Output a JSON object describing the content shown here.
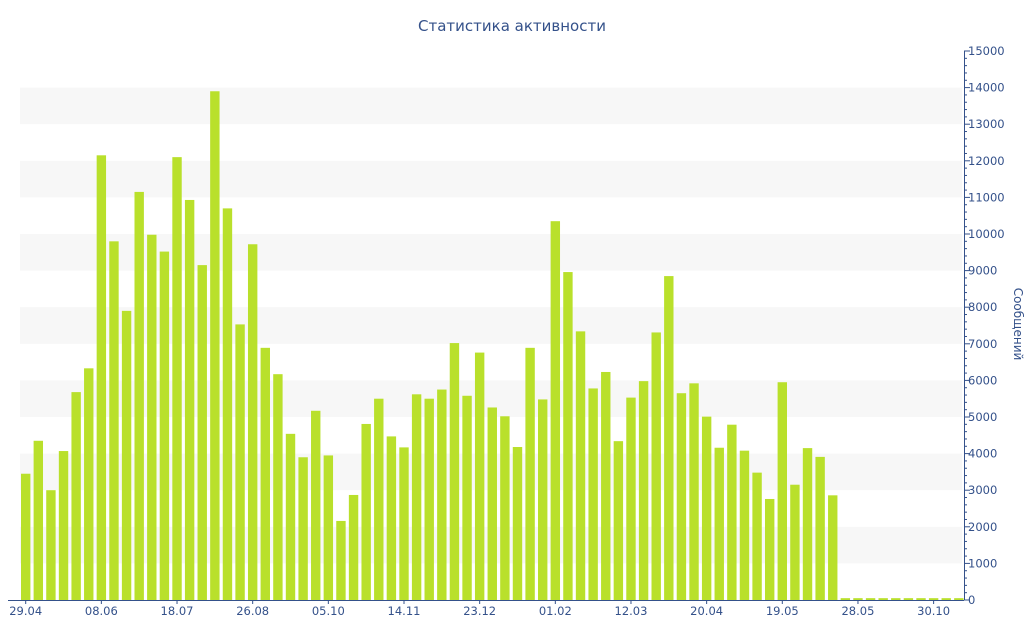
{
  "chart_data": {
    "type": "bar",
    "title": "Статистика активности",
    "xlabel": "",
    "ylabel": "Сообщений",
    "y_axis_side": "right",
    "ylim": [
      0,
      15000
    ],
    "y_ticks": [
      0,
      1000,
      2000,
      3000,
      4000,
      5000,
      6000,
      7000,
      8000,
      9000,
      10000,
      11000,
      12000,
      13000,
      14000,
      15000
    ],
    "x_tick_labels": [
      "29.04",
      "08.06",
      "18.07",
      "26.08",
      "05.10",
      "14.11",
      "23.12",
      "01.02",
      "12.03",
      "20.04",
      "19.05",
      "28.05",
      "30.10"
    ],
    "x_tick_bar_index": [
      0,
      6,
      12,
      18,
      24,
      30,
      36,
      42,
      48,
      54,
      60,
      66,
      72
    ],
    "grid": true,
    "bar_color": "#b9e02b",
    "band_color": "#f7f7f7",
    "text_color": "#34518a",
    "values": [
      3450,
      4350,
      3000,
      4070,
      5680,
      6330,
      12150,
      9800,
      7900,
      11150,
      9980,
      9520,
      12100,
      10930,
      9150,
      13900,
      10700,
      7530,
      9720,
      6890,
      6170,
      4540,
      3900,
      5170,
      3950,
      2160,
      2870,
      4810,
      5500,
      4470,
      4170,
      5620,
      5500,
      5750,
      7020,
      5580,
      6760,
      5260,
      5020,
      4180,
      6890,
      5480,
      10350,
      8960,
      7340,
      5780,
      6230,
      4340,
      5530,
      5980,
      7310,
      8850,
      5650,
      5920,
      5010,
      4160,
      4790,
      4080,
      3480,
      2760,
      5950,
      3150,
      4150,
      3910,
      2860,
      50,
      50,
      50,
      50,
      50,
      50,
      50,
      50,
      50,
      50
    ]
  }
}
